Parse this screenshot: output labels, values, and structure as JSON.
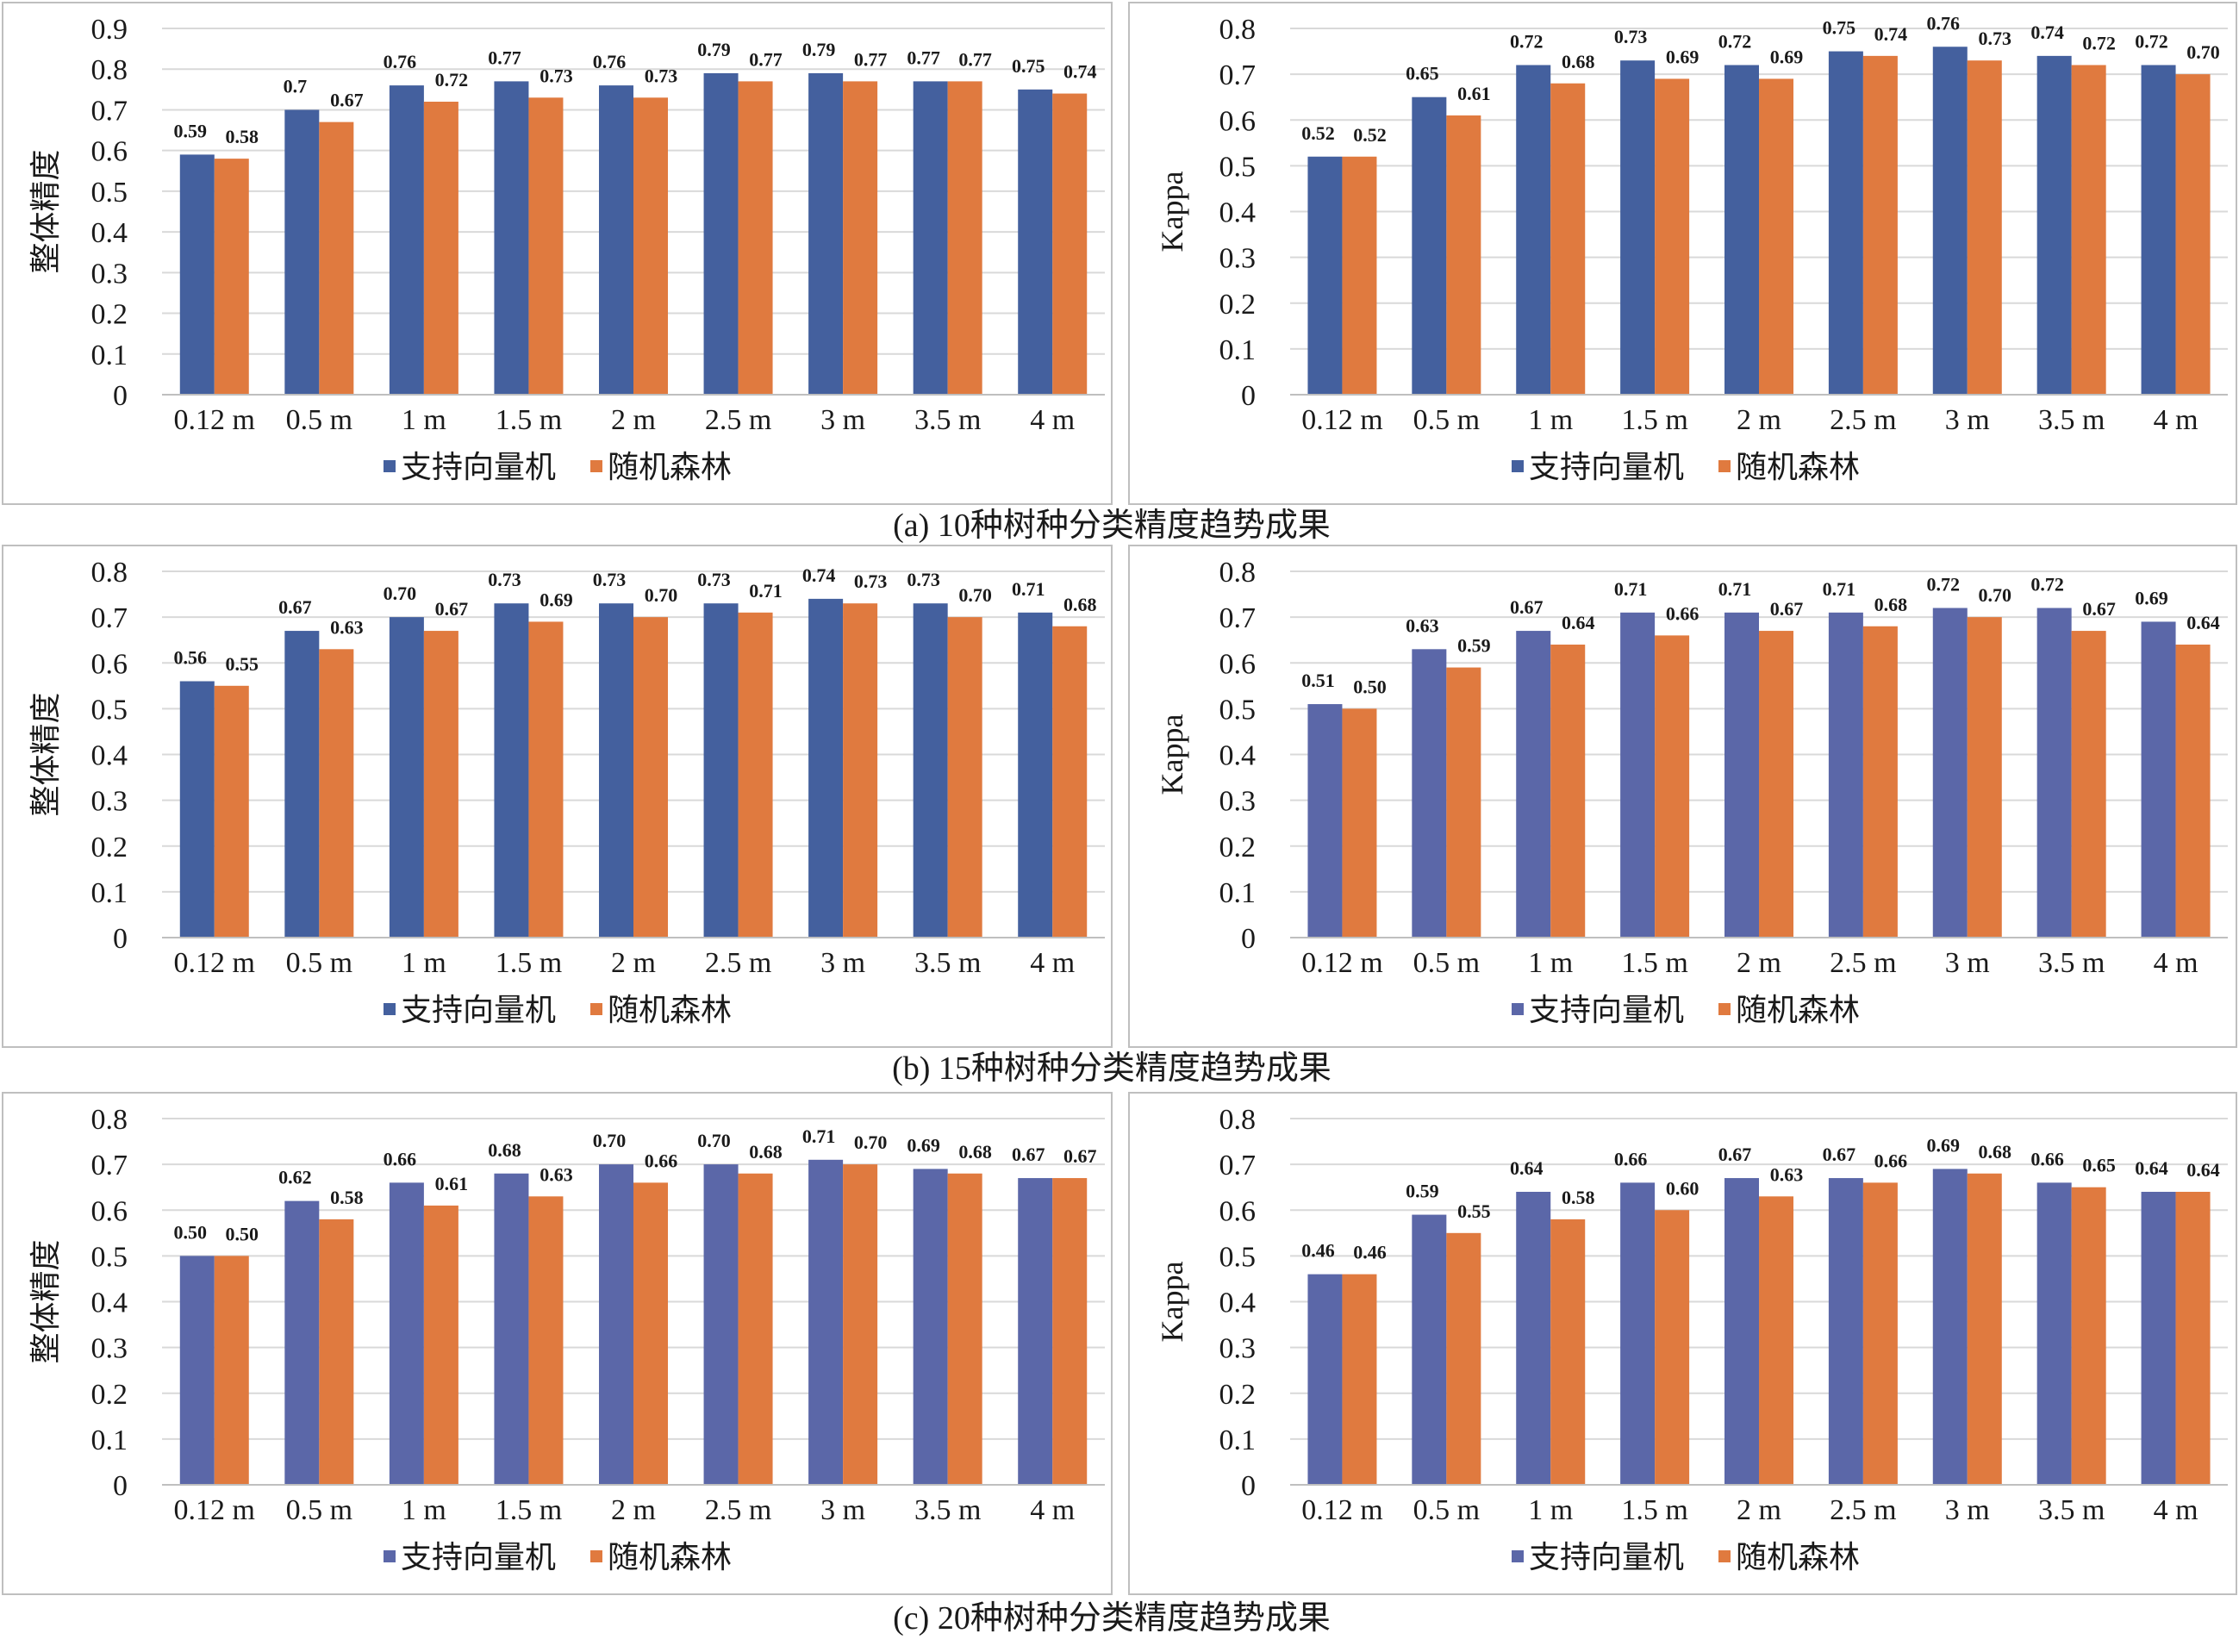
{
  "rows": [
    {
      "caption": "(a) 10种树种分类精度趋势成果",
      "charts": [
        {
          "ylabel": "整体精度",
          "yticks": [
            "0",
            "0.1",
            "0.2",
            "0.3",
            "0.4",
            "0.5",
            "0.6",
            "0.7",
            "0.8",
            "0.9"
          ]
        },
        {
          "ylabel": "Kappa",
          "yticks": [
            "0",
            "0.1",
            "0.2",
            "0.3",
            "0.4",
            "0.5",
            "0.6",
            "0.7",
            "0.8"
          ]
        }
      ]
    },
    {
      "caption": "(b) 15种树种分类精度趋势成果",
      "charts": [
        {
          "ylabel": "整体精度",
          "yticks": [
            "0",
            "0.1",
            "0.2",
            "0.3",
            "0.4",
            "0.5",
            "0.6",
            "0.7",
            "0.8"
          ]
        },
        {
          "ylabel": "Kappa",
          "yticks": [
            "0",
            "0.1",
            "0.2",
            "0.3",
            "0.4",
            "0.5",
            "0.6",
            "0.7",
            "0.8"
          ]
        }
      ]
    },
    {
      "caption": "(c) 20种树种分类精度趋势成果",
      "charts": [
        {
          "ylabel": "整体精度",
          "yticks": [
            "0",
            "0.1",
            "0.2",
            "0.3",
            "0.4",
            "0.5",
            "0.6",
            "0.7",
            "0.8"
          ]
        },
        {
          "ylabel": "Kappa",
          "yticks": [
            "0",
            "0.1",
            "0.2",
            "0.3",
            "0.4",
            "0.5",
            "0.6",
            "0.7",
            "0.8"
          ]
        }
      ]
    }
  ],
  "colors": {
    "svm": "#44609e",
    "svm_alt": "#5b67a8",
    "rf": "#e07a3f",
    "grid": "#d9d9d9",
    "text": "#1a1a1a"
  },
  "chart_data": [
    {
      "type": "bar",
      "categories": [
        "0.12 m",
        "0.5 m",
        "1 m",
        "1.5 m",
        "2 m",
        "2.5 m",
        "3 m",
        "3.5 m",
        "4 m"
      ],
      "series": [
        {
          "name": "支持向量机",
          "values": [
            0.59,
            0.7,
            0.76,
            0.77,
            0.76,
            0.79,
            0.79,
            0.77,
            0.75
          ],
          "labels": [
            "0.59",
            "0.7",
            "0.76",
            "0.77",
            "0.76",
            "0.79",
            "0.79",
            "0.77",
            "0.75"
          ]
        },
        {
          "name": "随机森林",
          "values": [
            0.58,
            0.67,
            0.72,
            0.73,
            0.73,
            0.77,
            0.77,
            0.77,
            0.74
          ],
          "labels": [
            "0.58",
            "0.67",
            "0.72",
            "0.73",
            "0.73",
            "0.77",
            "0.77",
            "0.77",
            "0.74"
          ]
        }
      ],
      "ylabel": "整体精度",
      "ylim": [
        0,
        0.9
      ],
      "grid": true,
      "legend": "bottom"
    },
    {
      "type": "bar",
      "categories": [
        "0.12 m",
        "0.5 m",
        "1 m",
        "1.5 m",
        "2 m",
        "2.5 m",
        "3 m",
        "3.5 m",
        "4 m"
      ],
      "series": [
        {
          "name": "支持向量机",
          "values": [
            0.52,
            0.65,
            0.72,
            0.73,
            0.72,
            0.75,
            0.76,
            0.74,
            0.72
          ],
          "labels": [
            "0.52",
            "0.65",
            "0.72",
            "0.73",
            "0.72",
            "0.75",
            "0.76",
            "0.74",
            "0.72"
          ]
        },
        {
          "name": "随机森林",
          "values": [
            0.52,
            0.61,
            0.68,
            0.69,
            0.69,
            0.74,
            0.73,
            0.72,
            0.7
          ],
          "labels": [
            "0.52",
            "0.61",
            "0.68",
            "0.69",
            "0.69",
            "0.74",
            "0.73",
            "0.72",
            "0.70"
          ]
        }
      ],
      "ylabel": "Kappa",
      "ylim": [
        0,
        0.8
      ],
      "grid": true,
      "legend": "bottom"
    },
    {
      "type": "bar",
      "categories": [
        "0.12 m",
        "0.5 m",
        "1 m",
        "1.5 m",
        "2 m",
        "2.5 m",
        "3 m",
        "3.5 m",
        "4 m"
      ],
      "series": [
        {
          "name": "支持向量机",
          "values": [
            0.56,
            0.67,
            0.7,
            0.73,
            0.73,
            0.73,
            0.74,
            0.73,
            0.71
          ],
          "labels": [
            "0.56",
            "0.67",
            "0.70",
            "0.73",
            "0.73",
            "0.73",
            "0.74",
            "0.73",
            "0.71"
          ]
        },
        {
          "name": "随机森林",
          "values": [
            0.55,
            0.63,
            0.67,
            0.69,
            0.7,
            0.71,
            0.73,
            0.7,
            0.68
          ],
          "labels": [
            "0.55",
            "0.63",
            "0.67",
            "0.69",
            "0.70",
            "0.71",
            "0.73",
            "0.70",
            "0.68"
          ]
        }
      ],
      "ylabel": "整体精度",
      "ylim": [
        0,
        0.8
      ],
      "grid": true,
      "legend": "bottom"
    },
    {
      "type": "bar",
      "categories": [
        "0.12 m",
        "0.5 m",
        "1 m",
        "1.5 m",
        "2 m",
        "2.5 m",
        "3 m",
        "3.5 m",
        "4 m"
      ],
      "series": [
        {
          "name": "支持向量机",
          "values": [
            0.51,
            0.63,
            0.67,
            0.71,
            0.71,
            0.71,
            0.72,
            0.72,
            0.69
          ],
          "labels": [
            "0.51",
            "0.63",
            "0.67",
            "0.71",
            "0.71",
            "0.71",
            "0.72",
            "0.72",
            "0.69"
          ]
        },
        {
          "name": "随机森林",
          "values": [
            0.5,
            0.59,
            0.64,
            0.66,
            0.67,
            0.68,
            0.7,
            0.67,
            0.64
          ],
          "labels": [
            "0.50",
            "0.59",
            "0.64",
            "0.66",
            "0.67",
            "0.68",
            "0.70",
            "0.67",
            "0.64"
          ]
        }
      ],
      "ylabel": "Kappa",
      "ylim": [
        0,
        0.8
      ],
      "grid": true,
      "legend": "bottom"
    },
    {
      "type": "bar",
      "categories": [
        "0.12 m",
        "0.5 m",
        "1 m",
        "1.5 m",
        "2 m",
        "2.5 m",
        "3 m",
        "3.5 m",
        "4 m"
      ],
      "series": [
        {
          "name": "支持向量机",
          "values": [
            0.5,
            0.62,
            0.66,
            0.68,
            0.7,
            0.7,
            0.71,
            0.69,
            0.67
          ],
          "labels": [
            "0.50",
            "0.62",
            "0.66",
            "0.68",
            "0.70",
            "0.70",
            "0.71",
            "0.69",
            "0.67"
          ]
        },
        {
          "name": "随机森林",
          "values": [
            0.5,
            0.58,
            0.61,
            0.63,
            0.66,
            0.68,
            0.7,
            0.68,
            0.67
          ],
          "labels": [
            "0.50",
            "0.58",
            "0.61",
            "0.63",
            "0.66",
            "0.68",
            "0.70",
            "0.68",
            "0.67"
          ]
        }
      ],
      "ylabel": "整体精度",
      "ylim": [
        0,
        0.8
      ],
      "grid": true,
      "legend": "bottom"
    },
    {
      "type": "bar",
      "categories": [
        "0.12 m",
        "0.5 m",
        "1 m",
        "1.5 m",
        "2 m",
        "2.5 m",
        "3 m",
        "3.5 m",
        "4 m"
      ],
      "series": [
        {
          "name": "支持向量机",
          "values": [
            0.46,
            0.59,
            0.64,
            0.66,
            0.67,
            0.67,
            0.69,
            0.66,
            0.64
          ],
          "labels": [
            "0.46",
            "0.59",
            "0.64",
            "0.66",
            "0.67",
            "0.67",
            "0.69",
            "0.66",
            "0.64"
          ]
        },
        {
          "name": "随机森林",
          "values": [
            0.46,
            0.55,
            0.58,
            0.6,
            0.63,
            0.66,
            0.68,
            0.65,
            0.64
          ],
          "labels": [
            "0.46",
            "0.55",
            "0.58",
            "0.60",
            "0.63",
            "0.66",
            "0.68",
            "0.65",
            "0.64"
          ]
        }
      ],
      "ylabel": "Kappa",
      "ylim": [
        0,
        0.8
      ],
      "grid": true,
      "legend": "bottom"
    }
  ]
}
